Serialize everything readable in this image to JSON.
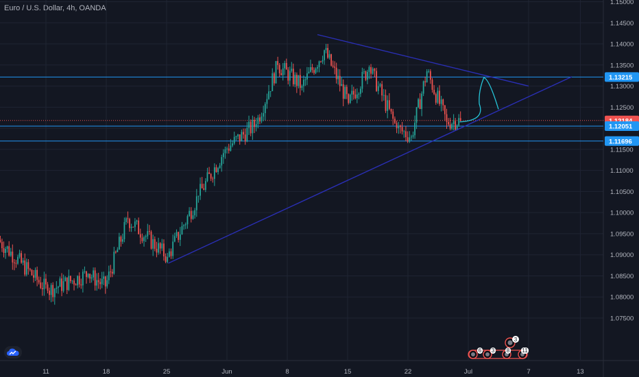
{
  "title": "Euro / U.S. Dollar, 4h, OANDA",
  "colors": {
    "background": "#131722",
    "grid": "#1f2433",
    "up": "#26a69a",
    "down": "#ef5350",
    "level_line": "#2196f3",
    "trend_line": "#2a2fb5",
    "forecast_path": "#26c6da",
    "current_price": "#ef5350"
  },
  "chart_data": {
    "type": "candlestick",
    "symbol": "EURUSD",
    "timeframe": "4h",
    "y_ticks": [
      "1.15000",
      "1.14500",
      "1.14000",
      "1.13500",
      "1.13000",
      "1.12500",
      "1.12000",
      "1.11500",
      "1.11000",
      "1.10500",
      "1.10000",
      "1.09500",
      "1.09000",
      "1.08500",
      "1.08000",
      "1.07500"
    ],
    "x_ticks": [
      "11",
      "18",
      "25",
      "Jun",
      "8",
      "15",
      "22",
      "Jul",
      "7",
      "13"
    ],
    "ylim": [
      1.0715,
      1.1515
    ],
    "price_labels": [
      {
        "text": "1.13215",
        "value": 1.13215,
        "kind": "level"
      },
      {
        "text": "1.12184",
        "value": 1.12184,
        "kind": "current"
      },
      {
        "text": "1.12051",
        "value": 1.12051,
        "kind": "level"
      },
      {
        "text": "1.11696",
        "value": 1.11696,
        "kind": "level"
      }
    ],
    "horizontal_levels": [
      1.13215,
      1.12051,
      1.11696
    ],
    "current_price": 1.12184,
    "candle_series": [
      {
        "start_day": 5.6,
        "end_day": 11.3,
        "from": 1.0935,
        "to": 1.0815,
        "low": 1.0775,
        "high": 1.0945
      },
      {
        "start_day": 11.3,
        "end_day": 16.0,
        "from": 1.0815,
        "to": 1.0855,
        "low": 1.0775,
        "high": 1.0895
      },
      {
        "start_day": 16.0,
        "end_day": 18.0,
        "from": 1.0855,
        "to": 1.0825,
        "low": 1.0785,
        "high": 1.087
      },
      {
        "start_day": 18.0,
        "end_day": 20.6,
        "from": 1.0825,
        "to": 1.0985,
        "low": 1.082,
        "high": 1.1005
      },
      {
        "start_day": 20.6,
        "end_day": 25.2,
        "from": 1.0985,
        "to": 1.0895,
        "low": 1.088,
        "high": 1.101
      },
      {
        "start_day": 25.2,
        "end_day": 28.8,
        "from": 1.0895,
        "to": 1.104,
        "low": 1.089,
        "high": 1.106
      },
      {
        "start_day": 28.8,
        "end_day": 31.9,
        "from": 1.104,
        "to": 1.115,
        "low": 1.103,
        "high": 1.1165
      },
      {
        "start_day": 31.9,
        "end_day": 35.5,
        "from": 1.115,
        "to": 1.121,
        "low": 1.114,
        "high": 1.123
      },
      {
        "start_day": 35.5,
        "end_day": 38.0,
        "from": 1.121,
        "to": 1.135,
        "low": 1.12,
        "high": 1.1375
      },
      {
        "start_day": 38.0,
        "end_day": 40.8,
        "from": 1.135,
        "to": 1.13,
        "low": 1.127,
        "high": 1.1365
      },
      {
        "start_day": 40.8,
        "end_day": 43.4,
        "from": 1.13,
        "to": 1.1385,
        "low": 1.1275,
        "high": 1.142
      },
      {
        "start_day": 43.4,
        "end_day": 46.2,
        "from": 1.1385,
        "to": 1.126,
        "low": 1.121,
        "high": 1.14
      },
      {
        "start_day": 46.2,
        "end_day": 48.6,
        "from": 1.126,
        "to": 1.1345,
        "low": 1.123,
        "high": 1.1355
      },
      {
        "start_day": 48.6,
        "end_day": 51.8,
        "from": 1.1345,
        "to": 1.12,
        "low": 1.1185,
        "high": 1.1355
      },
      {
        "start_day": 51.8,
        "end_day": 53.5,
        "from": 1.12,
        "to": 1.118,
        "low": 1.1165,
        "high": 1.1215
      },
      {
        "start_day": 53.5,
        "end_day": 55.3,
        "from": 1.118,
        "to": 1.1335,
        "low": 1.1175,
        "high": 1.135
      },
      {
        "start_day": 55.3,
        "end_day": 57.6,
        "from": 1.1335,
        "to": 1.1215,
        "low": 1.1195,
        "high": 1.134
      },
      {
        "start_day": 57.6,
        "end_day": 59.2,
        "from": 1.1215,
        "to": 1.1218,
        "low": 1.1195,
        "high": 1.124
      }
    ],
    "drawings": [
      {
        "name": "upper-trend-line",
        "type": "line",
        "points": [
          {
            "day": 42.5,
            "price": 1.1422
          },
          {
            "day": 67.0,
            "price": 1.13
          }
        ]
      },
      {
        "name": "lower-trend-line",
        "type": "line",
        "points": [
          {
            "day": 25.2,
            "price": 1.088
          },
          {
            "day": 72.0,
            "price": 1.1322
          }
        ]
      },
      {
        "name": "forecast-path",
        "type": "path",
        "points": [
          {
            "day": 59.0,
            "price": 1.1215
          },
          {
            "day": 61.2,
            "price": 1.1225
          },
          {
            "day": 61.8,
            "price": 1.132
          },
          {
            "day": 63.5,
            "price": 1.1245
          }
        ]
      }
    ],
    "events": {
      "top_badge": "3",
      "bottom_badges": [
        "6",
        "3",
        "8",
        "11"
      ]
    },
    "grid": true,
    "legend": "none"
  }
}
